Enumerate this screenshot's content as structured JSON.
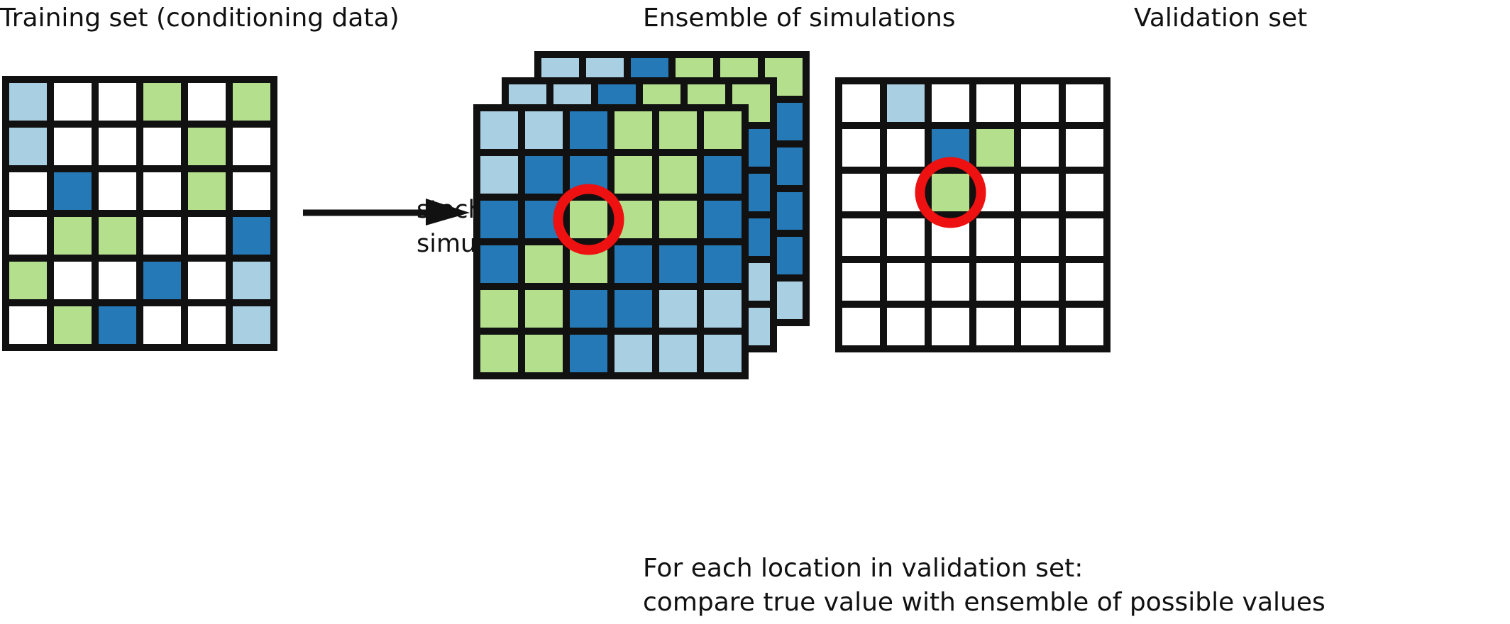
{
  "titles": {
    "training": "Training set (conditioning data)",
    "ensemble": "Ensemble of simulations",
    "validation": "Validation set"
  },
  "arrow_label": [
    "stochastic",
    "simulations"
  ],
  "caption": [
    "For each location in validation set:",
    "compare true value with ensemble of possible values"
  ],
  "colors": {
    "W": "#ffffff",
    "L": "#a9cfe2",
    "D": "#2479b6",
    "G": "#b4df8d",
    "grid_line": "#111111",
    "highlight": "#ee1111",
    "arrow": "#111111"
  },
  "grids": {
    "training": [
      [
        "L",
        "W",
        "W",
        "G",
        "W",
        "G"
      ],
      [
        "L",
        "W",
        "W",
        "W",
        "G",
        "W"
      ],
      [
        "W",
        "D",
        "W",
        "W",
        "G",
        "W"
      ],
      [
        "W",
        "G",
        "G",
        "W",
        "W",
        "D"
      ],
      [
        "G",
        "W",
        "W",
        "D",
        "W",
        "L"
      ],
      [
        "W",
        "G",
        "D",
        "W",
        "W",
        "L"
      ]
    ],
    "ensemble_front": [
      [
        "L",
        "L",
        "D",
        "G",
        "G",
        "G"
      ],
      [
        "L",
        "D",
        "D",
        "G",
        "G",
        "D"
      ],
      [
        "D",
        "D",
        "G",
        "G",
        "G",
        "D"
      ],
      [
        "D",
        "G",
        "G",
        "D",
        "D",
        "D"
      ],
      [
        "G",
        "G",
        "D",
        "D",
        "L",
        "L"
      ],
      [
        "G",
        "G",
        "D",
        "L",
        "L",
        "L"
      ]
    ],
    "ensemble_middle": [
      [
        "L",
        "L",
        "D",
        "G",
        "G",
        "G"
      ],
      [
        "L",
        "D",
        "D",
        "G",
        "G",
        "D"
      ],
      [
        "D",
        "D",
        "G",
        "G",
        "G",
        "D"
      ],
      [
        "D",
        "G",
        "G",
        "D",
        "D",
        "D"
      ],
      [
        "G",
        "G",
        "D",
        "D",
        "L",
        "L"
      ],
      [
        "G",
        "G",
        "D",
        "L",
        "L",
        "L"
      ]
    ],
    "ensemble_back": [
      [
        "L",
        "L",
        "D",
        "G",
        "G",
        "G"
      ],
      [
        "L",
        "D",
        "D",
        "G",
        "G",
        "D"
      ],
      [
        "D",
        "D",
        "G",
        "G",
        "G",
        "D"
      ],
      [
        "D",
        "G",
        "G",
        "D",
        "D",
        "D"
      ],
      [
        "G",
        "G",
        "D",
        "D",
        "L",
        "D"
      ],
      [
        "G",
        "G",
        "D",
        "L",
        "L",
        "L"
      ]
    ],
    "validation": [
      [
        "W",
        "L",
        "W",
        "W",
        "W",
        "W"
      ],
      [
        "W",
        "W",
        "D",
        "G",
        "W",
        "W"
      ],
      [
        "W",
        "W",
        "G",
        "W",
        "W",
        "W"
      ],
      [
        "W",
        "W",
        "W",
        "W",
        "W",
        "W"
      ],
      [
        "W",
        "W",
        "W",
        "W",
        "W",
        "W"
      ],
      [
        "W",
        "W",
        "W",
        "W",
        "W",
        "W"
      ]
    ]
  },
  "highlighted_cell": {
    "row": 2,
    "col": 2
  }
}
